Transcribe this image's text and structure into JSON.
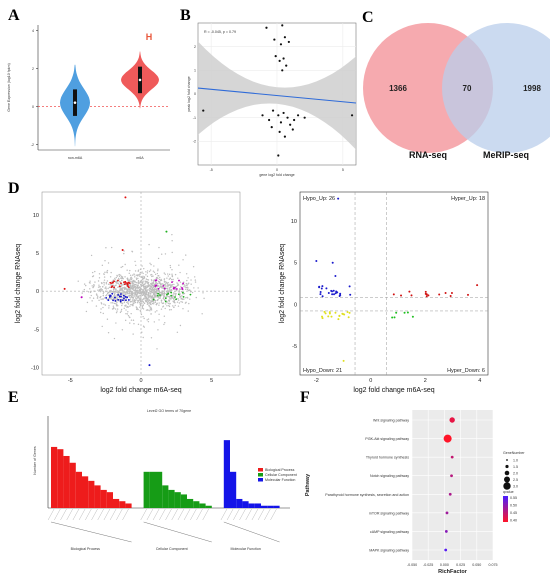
{
  "panel_labels": [
    "A",
    "B",
    "C",
    "D",
    "E",
    "F"
  ],
  "chart_data": [
    {
      "panel": "A",
      "type": "violin",
      "categories": [
        "non-m6A",
        "m6A"
      ],
      "ylabel": "Gene Expression (log10 fpkm)",
      "ylim": [
        -2.3,
        4.3
      ],
      "yticks": [
        -2,
        0,
        2,
        4
      ],
      "dashed_reference_y": 0,
      "significance_mark": "H",
      "colors": [
        "#4f9fe0",
        "#ef5a5a"
      ],
      "medians": [
        0.2,
        1.4
      ],
      "ranges": [
        [
          -2.1,
          2.2
        ],
        [
          -0.1,
          2.9
        ]
      ]
    },
    {
      "panel": "B",
      "type": "scatter",
      "stat_text": "R = -0.045, p = 0.79",
      "xlabel": "gene log2 fold change",
      "ylabel": "peak log2 fold change",
      "xlim": [
        -6,
        6
      ],
      "ylim": [
        -3,
        3
      ],
      "xticks": [
        -5,
        0,
        5
      ],
      "yticks": [
        -2,
        -1,
        0,
        1,
        2
      ],
      "points": [
        [
          -0.2,
          2.3
        ],
        [
          0.3,
          2.1
        ],
        [
          0.6,
          2.4
        ],
        [
          0.9,
          2.2
        ],
        [
          -0.1,
          1.6
        ],
        [
          0.2,
          1.4
        ],
        [
          0.5,
          1.5
        ],
        [
          0.7,
          1.2
        ],
        [
          0.4,
          1.0
        ],
        [
          -5.6,
          -0.7
        ],
        [
          -1.1,
          -0.9
        ],
        [
          -0.6,
          -1.1
        ],
        [
          -0.3,
          -0.7
        ],
        [
          0.1,
          -0.9
        ],
        [
          0.3,
          -1.2
        ],
        [
          0.5,
          -0.8
        ],
        [
          0.8,
          -1.0
        ],
        [
          1.0,
          -1.3
        ],
        [
          1.3,
          -1.1
        ],
        [
          1.6,
          -0.9
        ],
        [
          0.2,
          -1.6
        ],
        [
          0.6,
          -1.8
        ],
        [
          1.2,
          -1.5
        ],
        [
          -0.4,
          -1.4
        ],
        [
          0.1,
          -2.6
        ],
        [
          2.1,
          -1.0
        ],
        [
          5.7,
          -0.9
        ],
        [
          -0.8,
          2.8
        ],
        [
          0.4,
          2.9
        ]
      ],
      "fit_line": [
        [
          -6,
          0.25
        ],
        [
          6,
          -0.38
        ]
      ]
    },
    {
      "panel": "C",
      "type": "venn",
      "sets": [
        {
          "name": "RNA-seq",
          "only": 1366,
          "color": "#f6a5ab"
        },
        {
          "name": "MeRIP-seq",
          "only": 1998,
          "color": "#b9cdeb"
        }
      ],
      "intersection": 70
    },
    {
      "panel": "D-left",
      "type": "scatter",
      "xlabel": "log2 fold change m6A-seq",
      "ylabel": "log2 fold change RNAseq",
      "xlim": [
        -7,
        7
      ],
      "ylim": [
        -11,
        13
      ],
      "xticks": [
        -5,
        0,
        5
      ],
      "yticks": [
        -10,
        -5,
        0,
        5,
        10
      ]
    },
    {
      "panel": "D-right",
      "type": "scatter",
      "xlabel": "log2 fold change m6A-seq",
      "ylabel": "log2 fold change RNAseq",
      "xlim": [
        -2.6,
        4.3
      ],
      "ylim": [
        -8.5,
        13.5
      ],
      "xticks": [
        -2,
        0,
        2,
        4
      ],
      "yticks": [
        -5,
        0,
        5,
        10
      ],
      "quadrant_labels": {
        "top_left": "Hypo_Up: 26",
        "top_right": "Hyper_Up: 18",
        "bottom_left": "Hypo_Down: 21",
        "bottom_right": "Hyper_Down: 6"
      },
      "threshold_x": [
        -0.58,
        0.58
      ],
      "threshold_y": [
        -0.8,
        0.8
      ]
    },
    {
      "panel": "E",
      "type": "bar",
      "title": "Level2 GO terms of 70gene",
      "ylabel": "Number of Genes",
      "groups": [
        {
          "name": "Biological Process",
          "color": "#ee1c1c",
          "values": [
            27,
            26,
            23,
            20,
            16,
            14,
            12,
            10,
            8,
            7,
            4,
            3,
            2
          ]
        },
        {
          "name": "Cellular Component",
          "color": "#169c16",
          "values": [
            16,
            16,
            16,
            10,
            8,
            7,
            6,
            4,
            3,
            2,
            1
          ]
        },
        {
          "name": "Molecular Function",
          "color": "#1414e8",
          "values": [
            30,
            16,
            4,
            3,
            2,
            2,
            1,
            1,
            1
          ]
        }
      ],
      "ylim": [
        0,
        42
      ]
    },
    {
      "panel": "F",
      "type": "scatter",
      "xlabel": "RichFactor",
      "ylabel": "Pathway",
      "xlim": [
        -0.05,
        0.075
      ],
      "xticks": [
        -0.05,
        -0.025,
        0,
        0.025,
        0.05,
        0.075
      ],
      "tick_labels": [
        "-0.050",
        "-0.025",
        "0.000",
        "0.025",
        "0.050",
        "0.075"
      ],
      "categories": [
        "Wnt signaling pathway",
        "PI3K-Akt signaling pathway",
        "Thyroid hormone synthesis",
        "Notch signaling pathway",
        "Parathyroid hormone synthesis, secretion and action",
        "mTOR signaling pathway",
        "cAMP signaling pathway",
        "MAPK signaling pathway"
      ],
      "x": [
        0.012,
        0.005,
        0.012,
        0.011,
        0.009,
        0.004,
        0.003,
        0.002
      ],
      "gene_number": [
        2,
        3,
        1,
        1,
        1,
        1,
        1,
        1
      ],
      "qvalue": [
        0.42,
        0.4,
        0.45,
        0.46,
        0.47,
        0.48,
        0.5,
        0.54
      ],
      "legend_size_title": "GeneNumber",
      "legend_size_values": [
        "1.0",
        "1.5",
        "2.0",
        "2.5",
        "3.0"
      ],
      "legend_color_title": "qvalue",
      "legend_color_values": [
        "0.55",
        "0.50",
        "0.45",
        "0.40"
      ]
    }
  ]
}
